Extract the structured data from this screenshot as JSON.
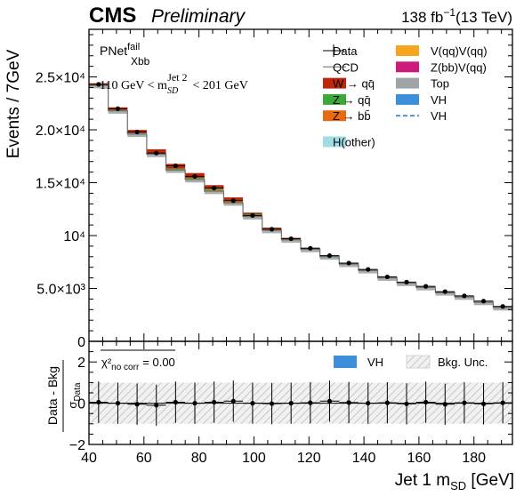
{
  "header": {
    "cms": "CMS",
    "preliminary": "Preliminary",
    "lumi_value": "138 fb",
    "lumi_exp": "−1",
    "lumi_energy": "(13 TeV)"
  },
  "annotation": {
    "tagger_main": "PNet",
    "tagger_sup": "fail",
    "tagger_sub": "Xbb",
    "cut_left": "110 GeV < m",
    "cut_sup": "Jet 2",
    "cut_sub": "SD",
    "cut_right": "< 201 GeV"
  },
  "legend": {
    "left": [
      {
        "label": "Data",
        "kind": "data"
      },
      {
        "label": "QCD",
        "kind": "line",
        "color": "#9a9a9a"
      },
      {
        "label": "W → qq̄",
        "kind": "box",
        "color": "#c0270a"
      },
      {
        "label": "Z → qq̄",
        "kind": "box",
        "color": "#3aa83a"
      },
      {
        "label": "Z → bb̄",
        "kind": "box",
        "color": "#e86a10"
      },
      {
        "label": "H(other)",
        "kind": "box",
        "color": "#9edde3"
      }
    ],
    "right": [
      {
        "label": "V(qq)V(qq)",
        "kind": "box",
        "color": "#f5a51e"
      },
      {
        "label": "Z(bb)V(qq)",
        "kind": "box",
        "color": "#cd1a7d"
      },
      {
        "label": "Top",
        "kind": "box",
        "color": "#9fa5a4"
      },
      {
        "label": "VH",
        "kind": "box",
        "color": "#3e8fda"
      },
      {
        "label": "VH",
        "kind": "dash",
        "color": "#3e8fda"
      }
    ]
  },
  "ratio_legend": {
    "chi_label": "χ²",
    "chi_sub": "no corr",
    "chi_value": "= 0.00",
    "vh_label": "VH",
    "vh_color": "#3e8fda",
    "unc_label": "Bkg. Unc."
  },
  "chart_data": [
    {
      "type": "bar",
      "title": "",
      "xlabel": "",
      "ylabel": "Events / 7GeV",
      "xlim": [
        40,
        194
      ],
      "ylim": [
        0,
        29500
      ],
      "bin_edges": [
        40,
        47,
        54,
        61,
        68,
        75,
        82,
        89,
        96,
        103,
        110,
        117,
        124,
        131,
        138,
        145,
        152,
        159,
        166,
        173,
        180,
        187,
        194
      ],
      "yticks": [
        0,
        5000,
        10000,
        15000,
        20000,
        25000
      ],
      "ytick_labels": [
        "0",
        "5.0×10³",
        "10⁴",
        "1.5×10⁴",
        "2.0×10⁴",
        "2.5×10⁴"
      ],
      "series": [
        {
          "name": "Data",
          "values": [
            24300,
            22000,
            19800,
            17800,
            16600,
            15600,
            14500,
            13300,
            11900,
            10600,
            9700,
            8800,
            8100,
            7400,
            6800,
            6100,
            5600,
            5200,
            4700,
            4300,
            3800,
            3300
          ]
        },
        {
          "name": "QCD",
          "values": [
            24200,
            21800,
            19600,
            17700,
            16200,
            15300,
            14200,
            13100,
            11800,
            10500,
            9600,
            8700,
            8000,
            7300,
            6700,
            6000,
            5500,
            5100,
            4600,
            4200,
            3700,
            3200
          ]
        },
        {
          "name": "W → qq̄",
          "values": [
            150,
            250,
            300,
            350,
            450,
            450,
            350,
            250,
            150,
            100,
            80,
            60,
            50,
            40,
            30,
            30,
            20,
            20,
            20,
            20,
            20,
            20
          ]
        },
        {
          "name": "Z → qq̄",
          "values": [
            30,
            40,
            50,
            60,
            70,
            80,
            100,
            110,
            100,
            80,
            60,
            50,
            40,
            30,
            30,
            20,
            20,
            20,
            20,
            20,
            20,
            20
          ]
        },
        {
          "name": "Z → bb̄",
          "values": [
            20,
            30,
            40,
            50,
            60,
            80,
            120,
            150,
            120,
            80,
            50,
            40,
            30,
            20,
            20,
            20,
            10,
            10,
            10,
            10,
            10,
            10
          ]
        }
      ]
    },
    {
      "type": "scatter",
      "title": "",
      "xlabel": "Jet 1 m_SD [GeV]",
      "ylabel": "Data - Bkg / σ_Data",
      "xlim": [
        40,
        194
      ],
      "ylim": [
        -2,
        3
      ],
      "xticks": [
        40,
        60,
        80,
        100,
        120,
        140,
        160,
        180
      ],
      "yticks": [
        -2,
        0,
        2
      ],
      "x": [
        43.5,
        50.5,
        57.5,
        64.5,
        71.5,
        78.5,
        85.5,
        92.5,
        99.5,
        106.5,
        113.5,
        120.5,
        127.5,
        134.5,
        141.5,
        148.5,
        155.5,
        162.5,
        169.5,
        176.5,
        183.5,
        190.5
      ],
      "y": [
        0.05,
        0.0,
        -0.05,
        -0.1,
        0.05,
        0.0,
        0.05,
        0.1,
        0.0,
        -0.02,
        0.0,
        0.02,
        0.1,
        0.03,
        0.0,
        0.02,
        -0.03,
        0.05,
        -0.05,
        0.02,
        -0.03,
        0.02
      ],
      "yerr": 1.0,
      "band": 1.0
    }
  ]
}
